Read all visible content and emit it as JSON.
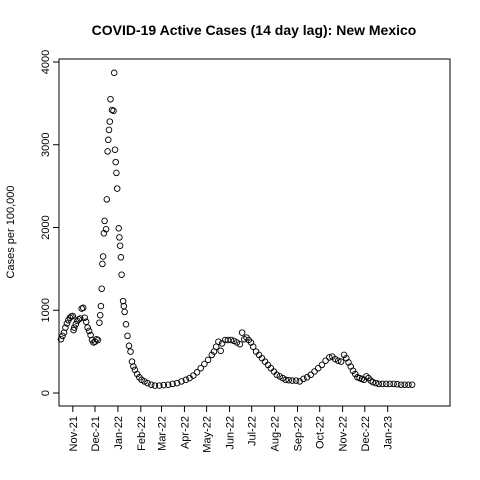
{
  "chart_data": {
    "type": "scatter",
    "title": "COVID-19 Active Cases (14 day lag): New Mexico",
    "xlabel": "",
    "ylabel": "Cases per 100,000",
    "ylim": [
      0,
      4000
    ],
    "y_ticks": [
      0,
      1000,
      2000,
      3000,
      4000
    ],
    "xlim": [
      "2021-10-16",
      "2023-03-06"
    ],
    "x_ticks": [
      {
        "date": "2021-11-01",
        "label": "Nov-21"
      },
      {
        "date": "2021-12-01",
        "label": "Dec-21"
      },
      {
        "date": "2022-01-01",
        "label": "Jan-22"
      },
      {
        "date": "2022-02-01",
        "label": "Feb-22"
      },
      {
        "date": "2022-03-01",
        "label": "Mar-22"
      },
      {
        "date": "2022-04-01",
        "label": "Apr-22"
      },
      {
        "date": "2022-05-01",
        "label": "May-22"
      },
      {
        "date": "2022-06-01",
        "label": "Jun-22"
      },
      {
        "date": "2022-07-01",
        "label": "Jul-22"
      },
      {
        "date": "2022-08-01",
        "label": "Aug-22"
      },
      {
        "date": "2022-09-01",
        "label": "Sep-22"
      },
      {
        "date": "2022-10-01",
        "label": "Oct-22"
      },
      {
        "date": "2022-11-01",
        "label": "Nov-22"
      },
      {
        "date": "2022-12-01",
        "label": "Dec-22"
      },
      {
        "date": "2023-01-01",
        "label": "Jan-23"
      }
    ],
    "grid": false,
    "legend": "none",
    "marker": "open-circle",
    "series": [
      {
        "points": [
          [
            "2021-10-16",
            650
          ],
          [
            "2021-10-18",
            690
          ],
          [
            "2021-10-20",
            730
          ],
          [
            "2021-10-22",
            790
          ],
          [
            "2021-10-24",
            840
          ],
          [
            "2021-10-26",
            880
          ],
          [
            "2021-10-28",
            910
          ],
          [
            "2021-10-30",
            925
          ],
          [
            "2021-11-01",
            930
          ],
          [
            "2021-11-02",
            760
          ],
          [
            "2021-11-03",
            790
          ],
          [
            "2021-11-05",
            830
          ],
          [
            "2021-11-07",
            870
          ],
          [
            "2021-11-09",
            890
          ],
          [
            "2021-11-11",
            900
          ],
          [
            "2021-11-13",
            1020
          ],
          [
            "2021-11-15",
            1030
          ],
          [
            "2021-11-17",
            910
          ],
          [
            "2021-11-19",
            860
          ],
          [
            "2021-11-21",
            790
          ],
          [
            "2021-11-23",
            750
          ],
          [
            "2021-11-25",
            700
          ],
          [
            "2021-11-27",
            640
          ],
          [
            "2021-11-29",
            610
          ],
          [
            "2021-12-01",
            620
          ],
          [
            "2021-12-03",
            650
          ],
          [
            "2021-12-05",
            640
          ],
          [
            "2021-12-07",
            850
          ],
          [
            "2021-12-08",
            940
          ],
          [
            "2021-12-09",
            1050
          ],
          [
            "2021-12-10",
            1260
          ],
          [
            "2021-12-11",
            1560
          ],
          [
            "2021-12-12",
            1650
          ],
          [
            "2021-12-13",
            1930
          ],
          [
            "2021-12-14",
            2080
          ],
          [
            "2021-12-16",
            1980
          ],
          [
            "2021-12-17",
            2340
          ],
          [
            "2021-12-18",
            2920
          ],
          [
            "2021-12-19",
            3060
          ],
          [
            "2021-12-20",
            3180
          ],
          [
            "2021-12-21",
            3280
          ],
          [
            "2021-12-22",
            3550
          ],
          [
            "2021-12-24",
            3420
          ],
          [
            "2021-12-26",
            3410
          ],
          [
            "2021-12-27",
            3870
          ],
          [
            "2021-12-28",
            2940
          ],
          [
            "2021-12-29",
            2790
          ],
          [
            "2021-12-30",
            2660
          ],
          [
            "2021-12-31",
            2470
          ],
          [
            "2022-01-02",
            1990
          ],
          [
            "2022-01-03",
            1880
          ],
          [
            "2022-01-04",
            1780
          ],
          [
            "2022-01-05",
            1640
          ],
          [
            "2022-01-06",
            1430
          ],
          [
            "2022-01-08",
            1110
          ],
          [
            "2022-01-09",
            1050
          ],
          [
            "2022-01-10",
            980
          ],
          [
            "2022-01-12",
            830
          ],
          [
            "2022-01-14",
            690
          ],
          [
            "2022-01-16",
            570
          ],
          [
            "2022-01-18",
            500
          ],
          [
            "2022-01-20",
            380
          ],
          [
            "2022-01-22",
            320
          ],
          [
            "2022-01-24",
            280
          ],
          [
            "2022-01-27",
            230
          ],
          [
            "2022-01-30",
            190
          ],
          [
            "2022-02-02",
            160
          ],
          [
            "2022-02-06",
            140
          ],
          [
            "2022-02-10",
            120
          ],
          [
            "2022-02-15",
            100
          ],
          [
            "2022-02-20",
            90
          ],
          [
            "2022-02-26",
            90
          ],
          [
            "2022-03-04",
            95
          ],
          [
            "2022-03-10",
            100
          ],
          [
            "2022-03-16",
            110
          ],
          [
            "2022-03-22",
            120
          ],
          [
            "2022-03-28",
            140
          ],
          [
            "2022-04-03",
            160
          ],
          [
            "2022-04-08",
            180
          ],
          [
            "2022-04-13",
            210
          ],
          [
            "2022-04-18",
            250
          ],
          [
            "2022-04-23",
            300
          ],
          [
            "2022-04-28",
            350
          ],
          [
            "2022-05-03",
            400
          ],
          [
            "2022-05-08",
            460
          ],
          [
            "2022-05-11",
            500
          ],
          [
            "2022-05-14",
            560
          ],
          [
            "2022-05-17",
            620
          ],
          [
            "2022-05-20",
            510
          ],
          [
            "2022-05-22",
            600
          ],
          [
            "2022-05-26",
            640
          ],
          [
            "2022-05-30",
            640
          ],
          [
            "2022-06-03",
            640
          ],
          [
            "2022-06-07",
            630
          ],
          [
            "2022-06-11",
            610
          ],
          [
            "2022-06-15",
            590
          ],
          [
            "2022-06-18",
            730
          ],
          [
            "2022-06-21",
            650
          ],
          [
            "2022-06-24",
            670
          ],
          [
            "2022-06-27",
            640
          ],
          [
            "2022-06-30",
            610
          ],
          [
            "2022-07-03",
            560
          ],
          [
            "2022-07-07",
            500
          ],
          [
            "2022-07-11",
            460
          ],
          [
            "2022-07-15",
            420
          ],
          [
            "2022-07-19",
            380
          ],
          [
            "2022-07-23",
            340
          ],
          [
            "2022-07-27",
            300
          ],
          [
            "2022-07-31",
            260
          ],
          [
            "2022-08-04",
            220
          ],
          [
            "2022-08-08",
            200
          ],
          [
            "2022-08-12",
            180
          ],
          [
            "2022-08-16",
            160
          ],
          [
            "2022-08-20",
            155
          ],
          [
            "2022-08-25",
            150
          ],
          [
            "2022-08-30",
            150
          ],
          [
            "2022-09-04",
            140
          ],
          [
            "2022-09-09",
            170
          ],
          [
            "2022-09-14",
            190
          ],
          [
            "2022-09-19",
            220
          ],
          [
            "2022-09-24",
            260
          ],
          [
            "2022-09-29",
            300
          ],
          [
            "2022-10-04",
            340
          ],
          [
            "2022-10-09",
            390
          ],
          [
            "2022-10-14",
            430
          ],
          [
            "2022-10-18",
            440
          ],
          [
            "2022-10-22",
            410
          ],
          [
            "2022-10-26",
            390
          ],
          [
            "2022-10-30",
            380
          ],
          [
            "2022-11-03",
            460
          ],
          [
            "2022-11-06",
            420
          ],
          [
            "2022-11-09",
            370
          ],
          [
            "2022-11-12",
            320
          ],
          [
            "2022-11-15",
            270
          ],
          [
            "2022-11-18",
            230
          ],
          [
            "2022-11-21",
            190
          ],
          [
            "2022-11-24",
            180
          ],
          [
            "2022-11-27",
            170
          ],
          [
            "2022-11-30",
            160
          ],
          [
            "2022-12-03",
            200
          ],
          [
            "2022-12-06",
            180
          ],
          [
            "2022-12-09",
            150
          ],
          [
            "2022-12-12",
            130
          ],
          [
            "2022-12-16",
            120
          ],
          [
            "2022-12-20",
            110
          ],
          [
            "2022-12-25",
            110
          ],
          [
            "2022-12-30",
            110
          ],
          [
            "2023-01-04",
            110
          ],
          [
            "2023-01-09",
            110
          ],
          [
            "2023-01-14",
            105
          ],
          [
            "2023-01-19",
            100
          ],
          [
            "2023-01-24",
            100
          ],
          [
            "2023-01-29",
            100
          ],
          [
            "2023-02-03",
            100
          ]
        ]
      }
    ]
  }
}
